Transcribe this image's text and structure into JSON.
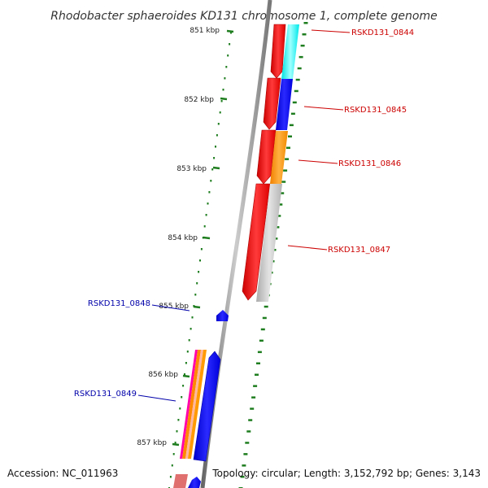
{
  "title": "Rhodobacter sphaeroides KD131 chromosome 1, complete genome",
  "footer": {
    "accession": "Accession: NC_011963",
    "summary": "Topology: circular; Length: 3,152,792 bp; Genes: 3,143"
  },
  "ruler": {
    "ticks": [
      "851 kbp",
      "852 kbp",
      "853 kbp",
      "854 kbp",
      "855 kbp",
      "856 kbp",
      "857 kbp"
    ]
  },
  "genes": [
    {
      "id": "RSKD131_0844",
      "color": "#cc0000"
    },
    {
      "id": "RSKD131_0845",
      "color": "#cc0000"
    },
    {
      "id": "RSKD131_0846",
      "color": "#cc0000"
    },
    {
      "id": "RSKD131_0847",
      "color": "#cc0000"
    },
    {
      "id": "RSKD131_0848",
      "color": "#0000aa"
    },
    {
      "id": "RSKD131_0849",
      "color": "#0000aa"
    }
  ],
  "colors": {
    "forward_strand": "#ff0000",
    "reverse_strand": "#0000ff",
    "ruler": "#1e7d1e",
    "backbone": "#888888",
    "cyan": "#00ffff",
    "blue": "#0000ff",
    "orange": "#ff8c00",
    "gray": "#c0c0c0"
  }
}
